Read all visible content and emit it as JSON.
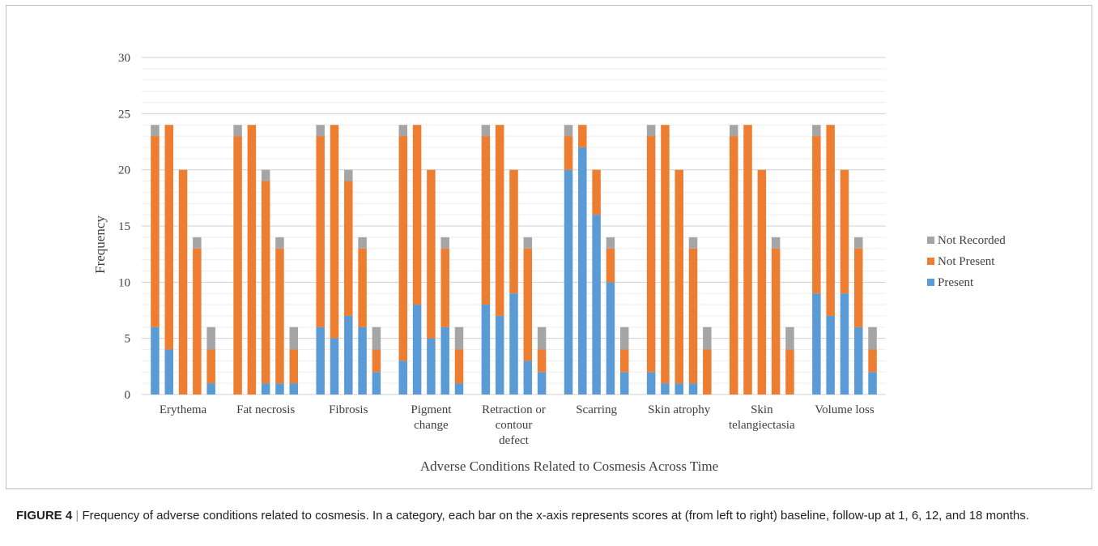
{
  "caption": {
    "label": "FIGURE 4",
    "separator": "|",
    "text": "Frequency of adverse conditions related to cosmesis. In a category, each bar on the x-axis represents scores at (from left to right) baseline, follow-up at 1, 6, 12, and 18 months."
  },
  "chart_data": {
    "type": "bar",
    "stacked": true,
    "xlabel": "Adverse Conditions Related to Cosmesis Across Time",
    "ylabel": "Frequency",
    "ylim": [
      0,
      30
    ],
    "yticks": [
      0,
      5,
      10,
      15,
      20,
      25,
      30
    ],
    "grid": true,
    "legend_position": "right",
    "bars_per_category": 5,
    "categories": [
      "Erythema",
      "Fat necrosis",
      "Fibrosis",
      "Pigment change",
      "Retraction or contour defect",
      "Scarring",
      "Skin atrophy",
      "Skin telangiectasia",
      "Volume loss"
    ],
    "category_lines": [
      [
        "Erythema"
      ],
      [
        "Fat necrosis"
      ],
      [
        "Fibrosis"
      ],
      [
        "Pigment",
        "change"
      ],
      [
        "Retraction or",
        "contour",
        "defect"
      ],
      [
        "Scarring"
      ],
      [
        "Skin atrophy"
      ],
      [
        "Skin",
        "telangiectasia"
      ],
      [
        "Volume loss"
      ]
    ],
    "series": [
      {
        "name": "Present",
        "color": "#5b9bd5",
        "values": [
          [
            6,
            4,
            0,
            0,
            1
          ],
          [
            0,
            0,
            1,
            1,
            1
          ],
          [
            6,
            5,
            7,
            6,
            2
          ],
          [
            3,
            8,
            5,
            6,
            1
          ],
          [
            8,
            7,
            9,
            3,
            2
          ],
          [
            20,
            22,
            16,
            10,
            2
          ],
          [
            2,
            1,
            1,
            1,
            0
          ],
          [
            0,
            0,
            0,
            0,
            0
          ],
          [
            9,
            7,
            9,
            6,
            2
          ]
        ]
      },
      {
        "name": "Not Present",
        "color": "#ed7d31",
        "values": [
          [
            17,
            20,
            20,
            13,
            3
          ],
          [
            23,
            24,
            18,
            12,
            3
          ],
          [
            17,
            19,
            12,
            7,
            2
          ],
          [
            20,
            16,
            15,
            7,
            3
          ],
          [
            15,
            17,
            11,
            10,
            2
          ],
          [
            3,
            2,
            4,
            3,
            2
          ],
          [
            21,
            23,
            19,
            12,
            4
          ],
          [
            23,
            24,
            20,
            13,
            4
          ],
          [
            14,
            17,
            11,
            7,
            2
          ]
        ]
      },
      {
        "name": "Not Recorded",
        "color": "#a5a5a5",
        "values": [
          [
            1,
            0,
            0,
            1,
            2
          ],
          [
            1,
            0,
            1,
            1,
            2
          ],
          [
            1,
            0,
            1,
            1,
            2
          ],
          [
            1,
            0,
            0,
            1,
            2
          ],
          [
            1,
            0,
            0,
            1,
            2
          ],
          [
            1,
            0,
            0,
            1,
            2
          ],
          [
            1,
            0,
            0,
            1,
            2
          ],
          [
            1,
            0,
            0,
            1,
            2
          ],
          [
            1,
            0,
            0,
            1,
            2
          ]
        ]
      }
    ],
    "legend_order": [
      "Not Recorded",
      "Not Present",
      "Present"
    ],
    "grid_color": "#d9d9d9",
    "text_color": "#404040"
  }
}
